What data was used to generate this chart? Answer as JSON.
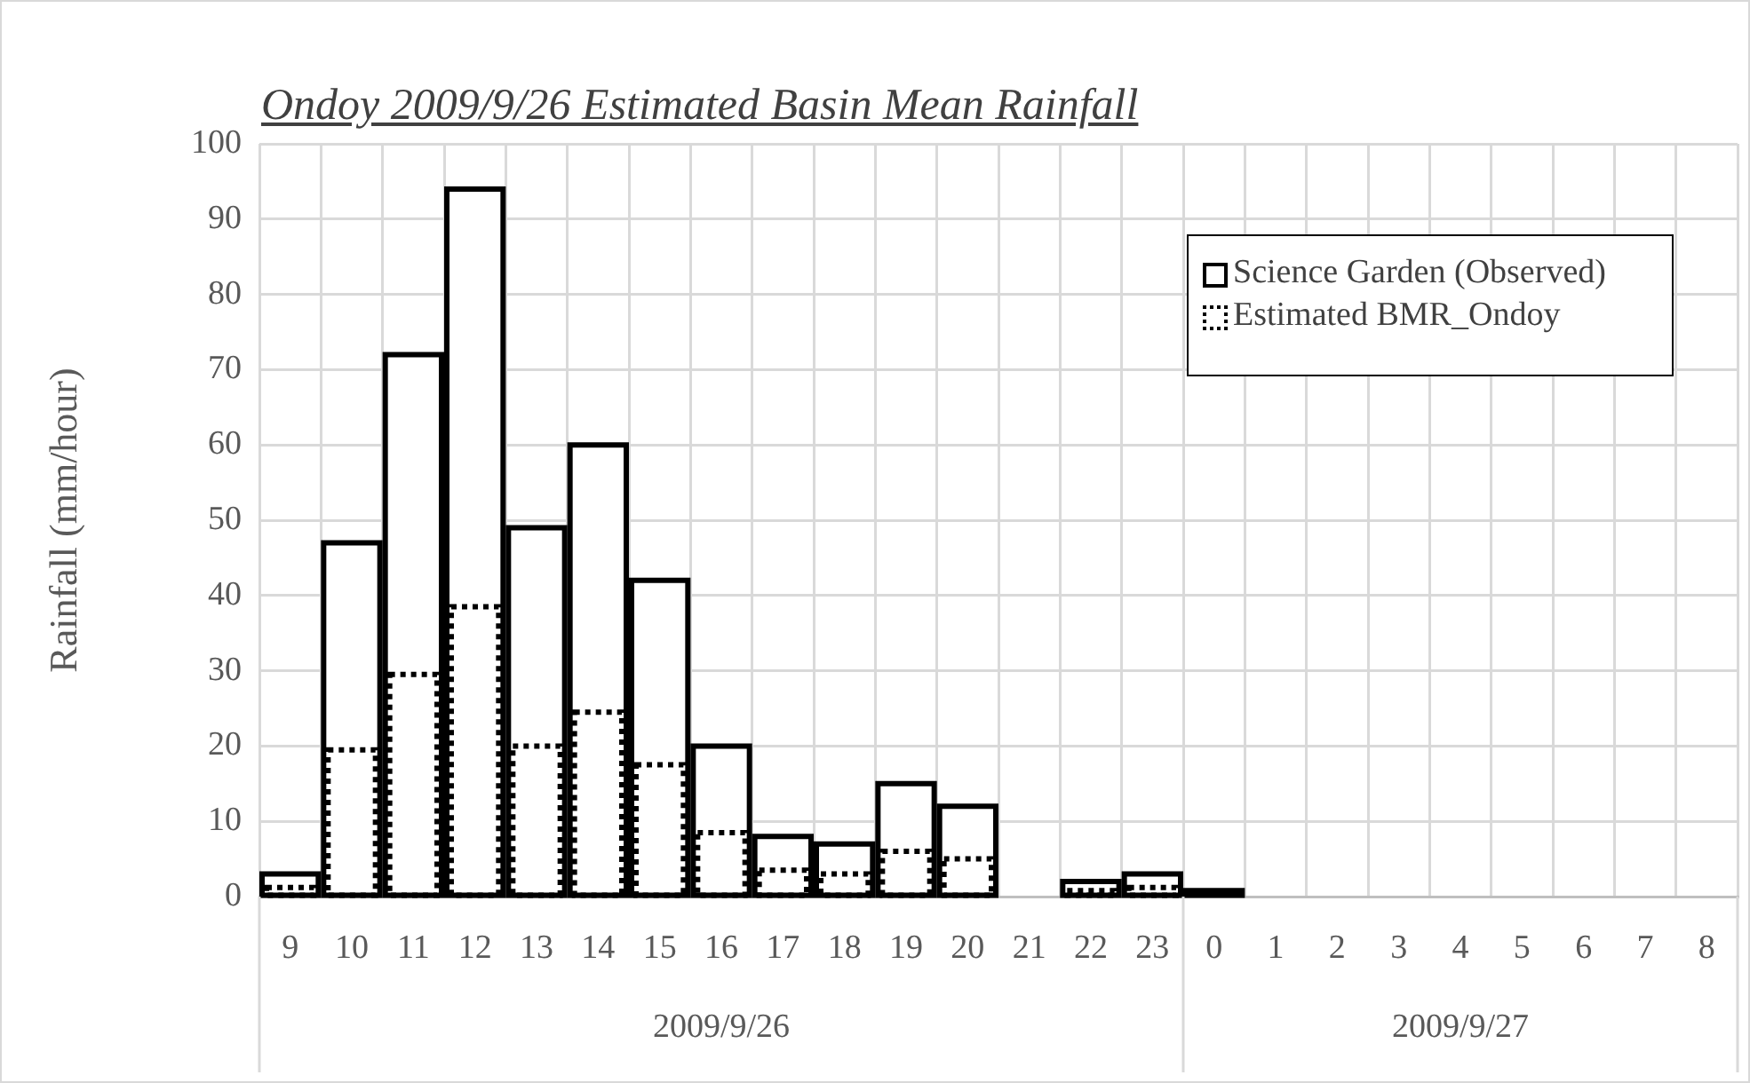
{
  "chart_data": {
    "type": "bar",
    "title": "Ondoy 2009/9/26 Estimated Basin Mean Rainfall",
    "ylabel": "Rainfall (mm/hour)",
    "categories": [
      "9",
      "10",
      "11",
      "12",
      "13",
      "14",
      "15",
      "16",
      "17",
      "18",
      "19",
      "20",
      "21",
      "22",
      "23",
      "0",
      "1",
      "2",
      "3",
      "4",
      "5",
      "6",
      "7",
      "8"
    ],
    "series": [
      {
        "name": "Science Garden (Observed)",
        "color": "#000000",
        "line_style": "solid",
        "values": [
          3,
          47,
          72,
          94,
          49,
          60,
          42,
          20,
          8,
          7,
          15,
          12,
          null,
          2,
          3,
          0.8,
          null,
          null,
          null,
          null,
          null,
          null,
          null,
          null
        ]
      },
      {
        "name": "Estimated BMR_Ondoy",
        "color": "#000000",
        "line_style": "dotted",
        "values": [
          1.2,
          19.5,
          29.5,
          38.5,
          20,
          24.5,
          17.5,
          8.5,
          3.5,
          3,
          6,
          5,
          null,
          0.8,
          1.2,
          null,
          null,
          null,
          null,
          null,
          null,
          null,
          null,
          null
        ]
      }
    ],
    "ylim": [
      0,
      100
    ],
    "yticks": [
      0,
      10,
      20,
      30,
      40,
      50,
      60,
      70,
      80,
      90,
      100
    ],
    "grid": true,
    "legend": "top right",
    "annotations": [
      "2009/9/26",
      "2009/9/27"
    ]
  }
}
